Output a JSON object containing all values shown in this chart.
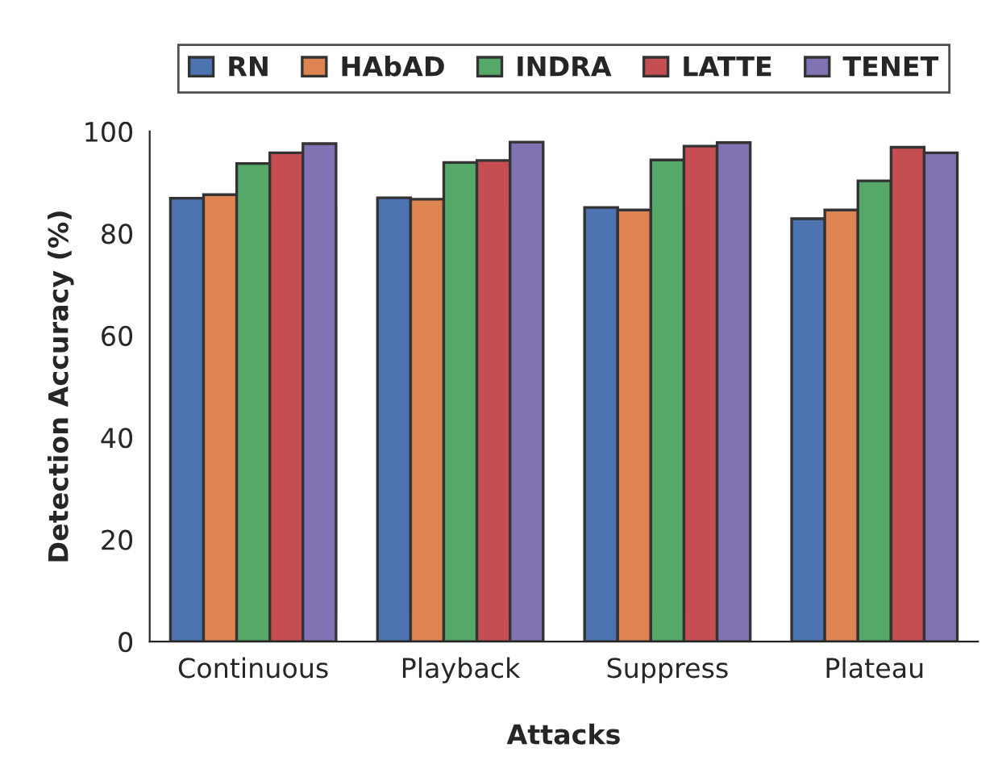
{
  "chart_data": {
    "type": "bar",
    "xlabel": "Attacks",
    "ylabel": "Detection Accuracy (%)",
    "categories": [
      "Continuous",
      "Playback",
      "Suppress",
      "Plateau"
    ],
    "series": [
      {
        "name": "RN",
        "color": "#4c72b0",
        "values": [
          86.9,
          87.0,
          85.1,
          82.9
        ]
      },
      {
        "name": "HAbAD",
        "color": "#dd8452",
        "values": [
          87.6,
          86.7,
          84.6,
          84.6
        ]
      },
      {
        "name": "INDRA",
        "color": "#55a868",
        "values": [
          93.7,
          93.9,
          94.4,
          90.3
        ]
      },
      {
        "name": "LATTE",
        "color": "#c44e52",
        "values": [
          95.8,
          94.3,
          97.1,
          96.9
        ]
      },
      {
        "name": "TENET",
        "color": "#8172b3",
        "values": [
          97.6,
          97.9,
          97.8,
          95.8
        ]
      }
    ],
    "ylim": [
      0,
      100
    ],
    "yticks": [
      0,
      20,
      40,
      60,
      80,
      100
    ],
    "grid": false,
    "legend": "top"
  }
}
